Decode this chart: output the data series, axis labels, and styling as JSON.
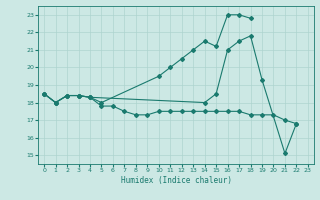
{
  "xlabel": "Humidex (Indice chaleur)",
  "xlim": [
    -0.5,
    23.5
  ],
  "ylim": [
    14.5,
    23.5
  ],
  "yticks": [
    15,
    16,
    17,
    18,
    19,
    20,
    21,
    22,
    23
  ],
  "xticks": [
    0,
    1,
    2,
    3,
    4,
    5,
    6,
    7,
    8,
    9,
    10,
    11,
    12,
    13,
    14,
    15,
    16,
    17,
    18,
    19,
    20,
    21,
    22,
    23
  ],
  "line_color": "#1a7a6e",
  "bg_color": "#cce8e4",
  "grid_color": "#aed4cf",
  "line1_x": [
    0,
    1,
    2,
    3,
    4,
    5,
    10,
    11,
    12,
    13,
    14,
    15,
    16,
    17,
    18
  ],
  "line1_y": [
    18.5,
    18.0,
    18.4,
    18.4,
    18.3,
    18.0,
    19.5,
    20.0,
    20.5,
    21.0,
    21.5,
    21.2,
    23.0,
    23.0,
    22.8
  ],
  "line2_x": [
    0,
    1,
    2,
    3,
    4,
    14,
    15,
    16,
    17,
    18,
    19,
    21,
    22
  ],
  "line2_y": [
    18.5,
    18.0,
    18.4,
    18.4,
    18.3,
    18.0,
    18.5,
    21.0,
    21.5,
    21.8,
    19.3,
    15.1,
    16.8
  ],
  "line3_x": [
    0,
    1,
    2,
    3,
    4,
    5,
    6,
    7,
    8,
    9,
    10,
    11,
    12,
    13,
    14,
    15,
    16,
    17,
    18,
    19,
    20,
    21,
    22
  ],
  "line3_y": [
    18.5,
    18.0,
    18.4,
    18.4,
    18.3,
    17.8,
    17.8,
    17.5,
    17.3,
    17.3,
    17.5,
    17.5,
    17.5,
    17.5,
    17.5,
    17.5,
    17.5,
    17.5,
    17.3,
    17.3,
    17.3,
    17.0,
    16.8
  ]
}
